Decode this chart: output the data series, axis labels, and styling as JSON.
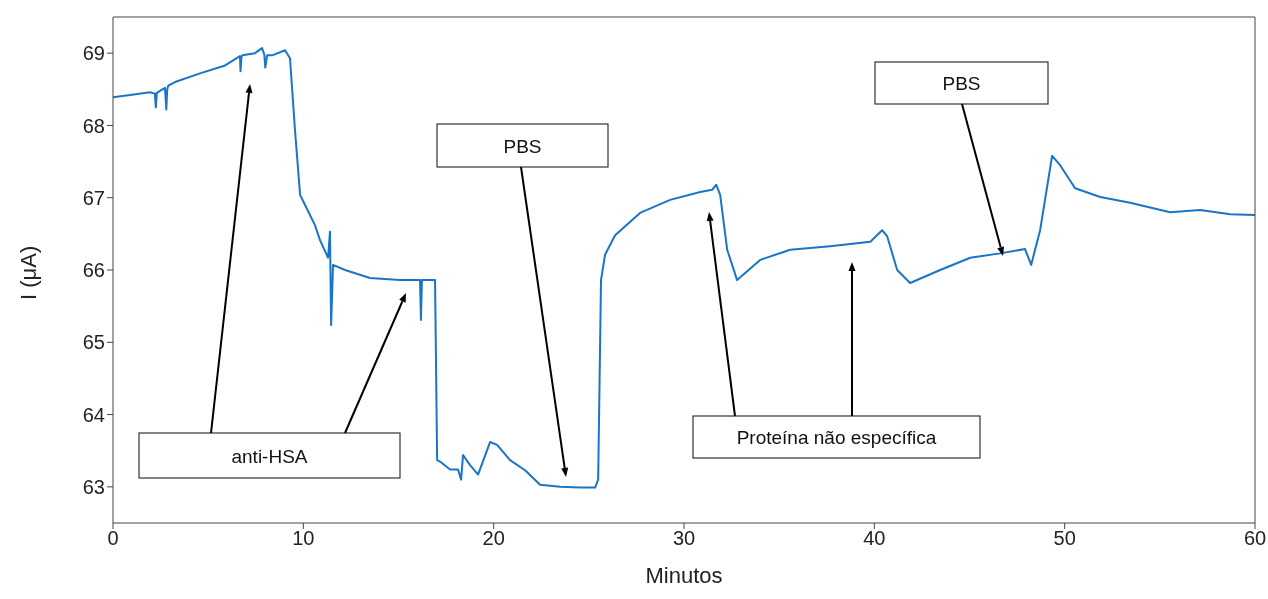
{
  "chart_data": {
    "type": "line",
    "xlabel": "Minutos",
    "ylabel": "I (μA)",
    "annotations": [
      "anti-HSA",
      "PBS",
      "Proteína não específica",
      "PBS"
    ],
    "xlim": [
      0,
      60
    ],
    "xticks": [
      0,
      10,
      20,
      30,
      40,
      50,
      60
    ],
    "ylim": [
      62.5,
      69.5
    ],
    "yticks": [
      63,
      64,
      65,
      66,
      67,
      68,
      69
    ],
    "grid": false,
    "legend": false,
    "marker": "none",
    "line_style": "solid",
    "series": [
      {
        "color": "#1a75c9",
        "x": [
          0,
          0.9,
          1.94,
          2.2,
          2.25,
          2.3,
          2.73,
          2.8,
          2.85,
          2.9,
          3.26,
          4.57,
          5.89,
          6.67,
          6.7,
          6.75,
          6.8,
          7.46,
          7.83,
          7.95,
          8.0,
          8.1,
          8.36,
          9.04,
          9.3,
          9.56,
          9.83,
          10.09,
          10.61,
          10.88,
          11.3,
          11.4,
          11.46,
          11.56,
          12.19,
          13.5,
          15.08,
          16.13,
          16.18,
          16.23,
          16.92,
          17.03,
          17.18,
          17.71,
          18.13,
          18.29,
          18.39,
          18.76,
          19.18,
          19.81,
          20.18,
          20.86,
          21.65,
          22.44,
          23.49,
          24.54,
          25.33,
          25.49,
          25.64,
          25.85,
          26.38,
          27.69,
          29.27,
          30.85,
          31.48,
          31.69,
          31.9,
          32.27,
          32.79,
          34.0,
          35.58,
          37.68,
          39.79,
          40.41,
          40.67,
          41.2,
          41.88,
          43.46,
          45.04,
          46.61,
          47.92,
          48.24,
          48.71,
          49.34,
          49.76,
          50.55,
          51.87,
          53.44,
          55.54,
          57.12,
          58.7,
          60
        ],
        "values": [
          68.39,
          68.42,
          68.46,
          68.44,
          68.25,
          68.45,
          68.52,
          68.22,
          68.5,
          68.55,
          68.6,
          68.72,
          68.83,
          68.96,
          68.75,
          68.95,
          68.97,
          69.0,
          69.07,
          68.98,
          68.8,
          68.97,
          68.97,
          69.04,
          68.93,
          67.94,
          67.04,
          66.9,
          66.62,
          66.41,
          66.17,
          66.53,
          65.24,
          66.07,
          66.0,
          65.89,
          65.86,
          65.86,
          65.31,
          65.86,
          65.86,
          63.37,
          63.35,
          63.24,
          63.24,
          63.1,
          63.44,
          63.3,
          63.17,
          63.62,
          63.58,
          63.37,
          63.23,
          63.03,
          63.0,
          62.99,
          62.99,
          63.1,
          65.86,
          66.21,
          66.48,
          66.79,
          66.97,
          67.08,
          67.11,
          67.18,
          67.04,
          66.28,
          65.86,
          66.14,
          66.28,
          66.33,
          66.39,
          66.55,
          66.47,
          66.0,
          65.82,
          66.0,
          66.17,
          66.23,
          66.29,
          66.07,
          66.55,
          67.58,
          67.45,
          67.13,
          67.01,
          66.93,
          66.8,
          66.83,
          66.77,
          66.76
        ]
      }
    ]
  }
}
